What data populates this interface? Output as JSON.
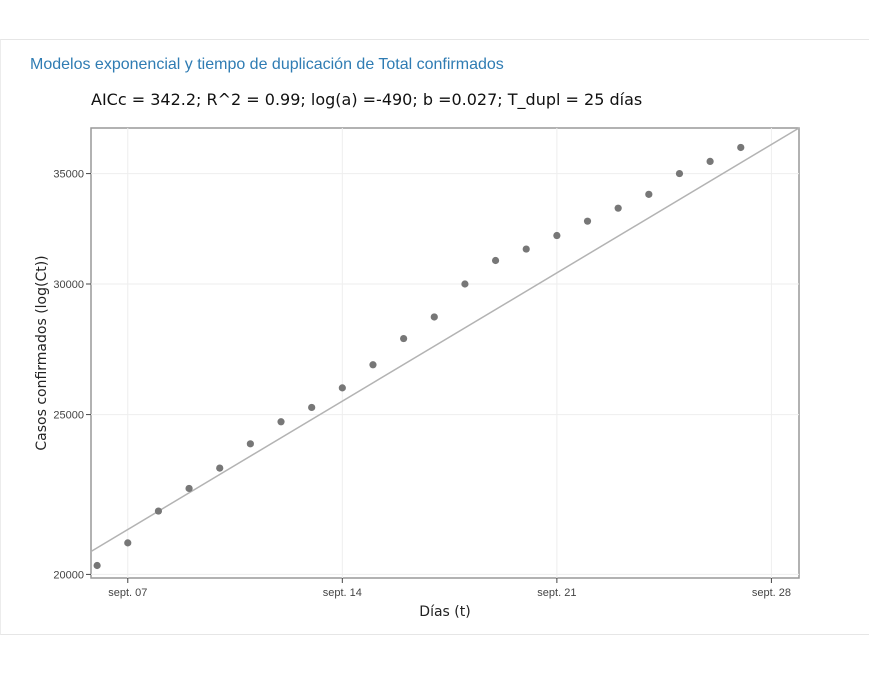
{
  "heading": "Modelos exponencial y tiempo de duplicación de Total confirmados",
  "chart_data": {
    "type": "scatter",
    "subtitle": "AICc = 342.2; R^2 = 0.99; log(a) =-490; b =0.027; T_dupl = 25 días",
    "xlabel": "Días (t)",
    "ylabel": "Casos confirmados (log(Ct))",
    "log_y": true,
    "grid": true,
    "x_ticks": [
      {
        "day": 7,
        "label": "sept. 07"
      },
      {
        "day": 14,
        "label": "sept. 14"
      },
      {
        "day": 21,
        "label": "sept. 21"
      },
      {
        "day": 28,
        "label": "sept. 28"
      }
    ],
    "y_ticks": [
      20000,
      25000,
      30000,
      35000
    ],
    "y_tick_labels": [
      "20000",
      "25000",
      "30000",
      "35000"
    ],
    "xlim": [
      5.8,
      28.9
    ],
    "ylim": [
      19900,
      37300
    ],
    "point_color": "#777777",
    "line_color": "#b3b3b3",
    "points": [
      {
        "day": 6,
        "value": 20250
      },
      {
        "day": 7,
        "value": 20900
      },
      {
        "day": 8,
        "value": 21850
      },
      {
        "day": 9,
        "value": 22550
      },
      {
        "day": 10,
        "value": 23200
      },
      {
        "day": 11,
        "value": 24000
      },
      {
        "day": 12,
        "value": 24750
      },
      {
        "day": 13,
        "value": 25250
      },
      {
        "day": 14,
        "value": 25950
      },
      {
        "day": 15,
        "value": 26800
      },
      {
        "day": 16,
        "value": 27800
      },
      {
        "day": 17,
        "value": 28650
      },
      {
        "day": 18,
        "value": 30000
      },
      {
        "day": 19,
        "value": 31000
      },
      {
        "day": 20,
        "value": 31500
      },
      {
        "day": 21,
        "value": 32100
      },
      {
        "day": 22,
        "value": 32750
      },
      {
        "day": 23,
        "value": 33350
      },
      {
        "day": 24,
        "value": 34000
      },
      {
        "day": 25,
        "value": 35000
      },
      {
        "day": 26,
        "value": 35600
      },
      {
        "day": 27,
        "value": 36300
      }
    ],
    "fit_line": [
      {
        "day": 5.8,
        "value": 20650
      },
      {
        "day": 28.9,
        "value": 37300
      }
    ]
  }
}
